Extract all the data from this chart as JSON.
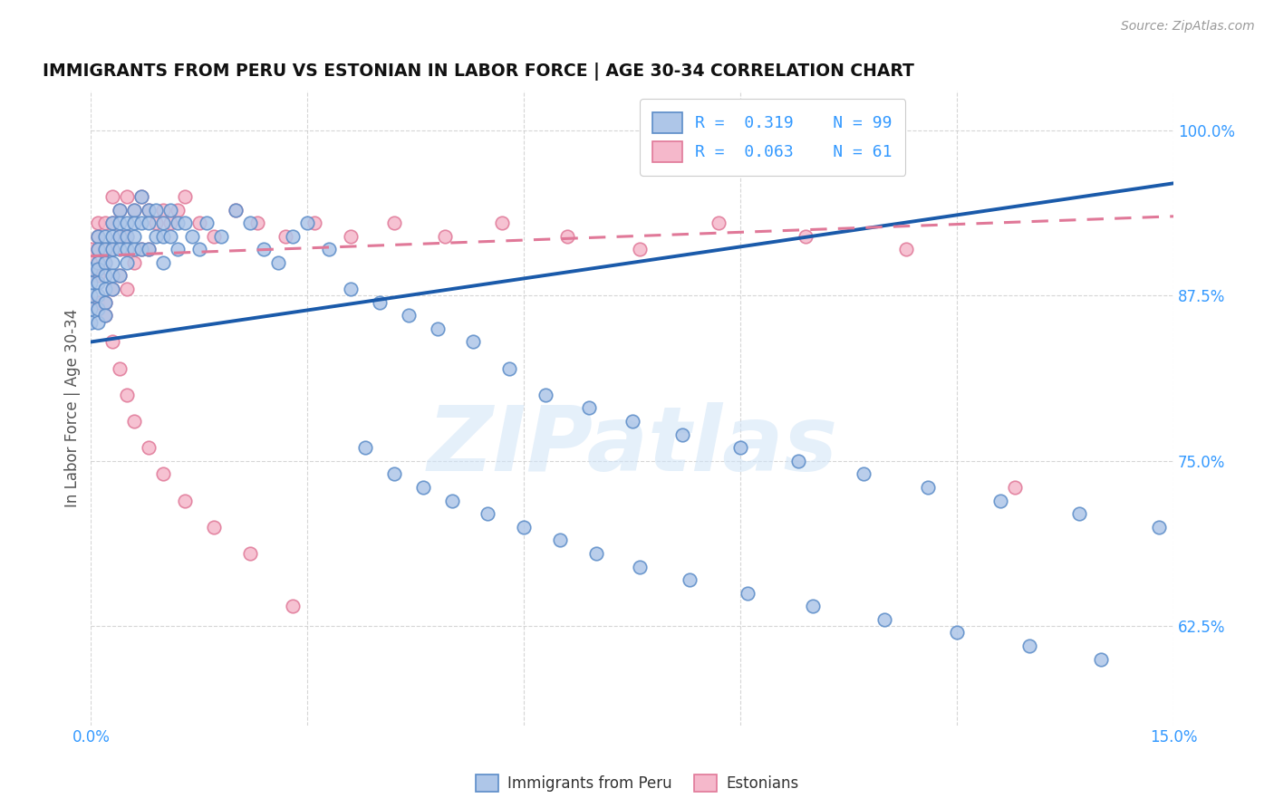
{
  "title": "IMMIGRANTS FROM PERU VS ESTONIAN IN LABOR FORCE | AGE 30-34 CORRELATION CHART",
  "source_text": "Source: ZipAtlas.com",
  "ylabel": "In Labor Force | Age 30-34",
  "xlim": [
    0.0,
    0.15
  ],
  "ylim": [
    0.55,
    1.03
  ],
  "yticks": [
    0.625,
    0.75,
    0.875,
    1.0
  ],
  "yticklabels": [
    "62.5%",
    "75.0%",
    "87.5%",
    "100.0%"
  ],
  "xtick_left_label": "0.0%",
  "xtick_right_label": "15.0%",
  "peru_color": "#aec6e8",
  "peru_edge_color": "#5b8cc8",
  "estonian_color": "#f5b8cb",
  "estonian_edge_color": "#e07898",
  "trend_peru_color": "#1a5aaa",
  "trend_estonian_color": "#e07898",
  "background_color": "#ffffff",
  "grid_color": "#cccccc",
  "title_color": "#111111",
  "axis_label_color": "#555555",
  "tick_color": "#3399ff",
  "watermark_text": "ZIPatlas",
  "watermark_color": "#d0e4f7",
  "watermark_alpha": 0.55,
  "trend_peru_x0": 0.0,
  "trend_peru_y0": 0.84,
  "trend_peru_x1": 0.15,
  "trend_peru_y1": 0.96,
  "trend_est_x0": 0.0,
  "trend_est_y0": 0.905,
  "trend_est_x1": 0.15,
  "trend_est_y1": 0.935,
  "peru_x": [
    0.0,
    0.0,
    0.0,
    0.0,
    0.0,
    0.001,
    0.001,
    0.001,
    0.001,
    0.001,
    0.001,
    0.001,
    0.001,
    0.002,
    0.002,
    0.002,
    0.002,
    0.002,
    0.002,
    0.002,
    0.003,
    0.003,
    0.003,
    0.003,
    0.003,
    0.003,
    0.004,
    0.004,
    0.004,
    0.004,
    0.004,
    0.005,
    0.005,
    0.005,
    0.005,
    0.006,
    0.006,
    0.006,
    0.006,
    0.007,
    0.007,
    0.007,
    0.008,
    0.008,
    0.008,
    0.009,
    0.009,
    0.01,
    0.01,
    0.01,
    0.011,
    0.011,
    0.012,
    0.012,
    0.013,
    0.014,
    0.015,
    0.016,
    0.018,
    0.02,
    0.022,
    0.024,
    0.026,
    0.028,
    0.03,
    0.033,
    0.036,
    0.04,
    0.044,
    0.048,
    0.053,
    0.058,
    0.063,
    0.069,
    0.075,
    0.082,
    0.09,
    0.098,
    0.107,
    0.116,
    0.126,
    0.137,
    0.148,
    0.038,
    0.042,
    0.046,
    0.05,
    0.055,
    0.06,
    0.065,
    0.07,
    0.076,
    0.083,
    0.091,
    0.1,
    0.11,
    0.12,
    0.13,
    0.14
  ],
  "peru_y": [
    0.895,
    0.885,
    0.875,
    0.865,
    0.855,
    0.92,
    0.91,
    0.9,
    0.895,
    0.885,
    0.875,
    0.865,
    0.855,
    0.92,
    0.91,
    0.9,
    0.89,
    0.88,
    0.87,
    0.86,
    0.93,
    0.92,
    0.91,
    0.9,
    0.89,
    0.88,
    0.94,
    0.93,
    0.92,
    0.91,
    0.89,
    0.93,
    0.92,
    0.91,
    0.9,
    0.94,
    0.93,
    0.92,
    0.91,
    0.95,
    0.93,
    0.91,
    0.94,
    0.93,
    0.91,
    0.94,
    0.92,
    0.93,
    0.92,
    0.9,
    0.94,
    0.92,
    0.93,
    0.91,
    0.93,
    0.92,
    0.91,
    0.93,
    0.92,
    0.94,
    0.93,
    0.91,
    0.9,
    0.92,
    0.93,
    0.91,
    0.88,
    0.87,
    0.86,
    0.85,
    0.84,
    0.82,
    0.8,
    0.79,
    0.78,
    0.77,
    0.76,
    0.75,
    0.74,
    0.73,
    0.72,
    0.71,
    0.7,
    0.76,
    0.74,
    0.73,
    0.72,
    0.71,
    0.7,
    0.69,
    0.68,
    0.67,
    0.66,
    0.65,
    0.64,
    0.63,
    0.62,
    0.61,
    0.6
  ],
  "estonian_x": [
    0.0,
    0.0,
    0.0,
    0.0,
    0.001,
    0.001,
    0.001,
    0.001,
    0.001,
    0.002,
    0.002,
    0.002,
    0.002,
    0.003,
    0.003,
    0.003,
    0.003,
    0.004,
    0.004,
    0.004,
    0.005,
    0.005,
    0.005,
    0.006,
    0.006,
    0.007,
    0.007,
    0.008,
    0.008,
    0.009,
    0.01,
    0.011,
    0.012,
    0.013,
    0.015,
    0.017,
    0.02,
    0.023,
    0.027,
    0.031,
    0.036,
    0.042,
    0.049,
    0.057,
    0.066,
    0.076,
    0.087,
    0.099,
    0.113,
    0.128,
    0.002,
    0.003,
    0.004,
    0.005,
    0.006,
    0.008,
    0.01,
    0.013,
    0.017,
    0.022,
    0.028
  ],
  "estonian_y": [
    0.91,
    0.9,
    0.89,
    0.87,
    0.93,
    0.92,
    0.91,
    0.89,
    0.87,
    0.93,
    0.91,
    0.9,
    0.87,
    0.95,
    0.93,
    0.91,
    0.88,
    0.94,
    0.92,
    0.89,
    0.95,
    0.92,
    0.88,
    0.94,
    0.9,
    0.95,
    0.91,
    0.94,
    0.91,
    0.93,
    0.94,
    0.93,
    0.94,
    0.95,
    0.93,
    0.92,
    0.94,
    0.93,
    0.92,
    0.93,
    0.92,
    0.93,
    0.92,
    0.93,
    0.92,
    0.91,
    0.93,
    0.92,
    0.91,
    0.73,
    0.86,
    0.84,
    0.82,
    0.8,
    0.78,
    0.76,
    0.74,
    0.72,
    0.7,
    0.68,
    0.64
  ]
}
